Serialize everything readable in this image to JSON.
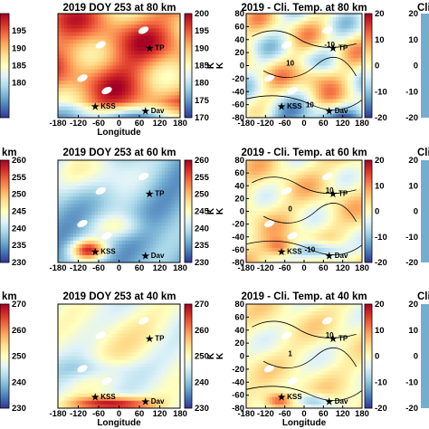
{
  "chart_data": [
    {
      "type": "heatmap",
      "title": "2019 DOY 253 at 80 km",
      "xlabel": "Longitude",
      "ylabel": "",
      "xlim": [
        -180,
        180
      ],
      "ylim": [
        -80,
        80
      ],
      "xticks": [
        "-180",
        "-120",
        "-60",
        "0",
        "60",
        "120",
        "180"
      ],
      "yticks": [],
      "colorbar": {
        "label": "K",
        "ticks": [
          "200",
          "195",
          "190",
          "185",
          "180",
          "175",
          "170"
        ],
        "range": [
          170,
          200
        ]
      },
      "left_colorbar_ticks": [
        "195",
        "190",
        "185",
        "180"
      ],
      "left_colorbar_label": "",
      "sites": [
        {
          "name": "TP",
          "lon": 90,
          "lat": 28
        },
        {
          "name": "KSS",
          "lon": -70,
          "lat": -62
        },
        {
          "name": "Dav",
          "lon": 78,
          "lat": -69
        }
      ]
    },
    {
      "type": "heatmap",
      "title": "2019 - Cli. Temp. at 80 km",
      "xlabel": "",
      "ylabel": "",
      "xlim": [
        -180,
        180
      ],
      "ylim": [
        -80,
        80
      ],
      "xticks": [
        "-180",
        "-120",
        "-60",
        "0",
        "60",
        "120",
        "180"
      ],
      "yticks": [
        "80",
        "60",
        "40",
        "20",
        "0",
        "-20",
        "-40",
        "-60",
        "-80"
      ],
      "ytick_axis_label": "K",
      "colorbar": {
        "label": "",
        "ticks": [
          "20",
          "10",
          "0",
          "-10",
          "-20"
        ],
        "range": [
          -20,
          20
        ]
      },
      "contour_labels": [
        "10",
        "-10",
        "10"
      ],
      "sites": [
        {
          "name": "TP",
          "lon": 90,
          "lat": 28
        },
        {
          "name": "KSS",
          "lon": -70,
          "lat": -62
        },
        {
          "name": "Dav",
          "lon": 78,
          "lat": -69
        }
      ]
    },
    {
      "type": "heatmap",
      "title": "2019 DOY 253 at 60 km",
      "xlabel": "",
      "ylabel": "",
      "xlim": [
        -180,
        180
      ],
      "ylim": [
        -80,
        80
      ],
      "xticks": [
        "-180",
        "-120",
        "-60",
        "0",
        "60",
        "120",
        "180"
      ],
      "yticks": [],
      "colorbar": {
        "label": "K",
        "ticks": [
          "260",
          "255",
          "250",
          "245",
          "240",
          "235",
          "230"
        ],
        "range": [
          230,
          260
        ]
      },
      "left_colorbar_ticks": [
        "260",
        "255",
        "250",
        "245",
        "240",
        "235",
        "230"
      ],
      "left_colorbar_label": "km",
      "sites": [
        {
          "name": "TP",
          "lon": 90,
          "lat": 28
        },
        {
          "name": "KSS",
          "lon": -70,
          "lat": -62
        },
        {
          "name": "Dav",
          "lon": 78,
          "lat": -69
        }
      ]
    },
    {
      "type": "heatmap",
      "title": "2019 - Cli. Temp. at 60 km",
      "xlabel": "",
      "ylabel": "",
      "xlim": [
        -180,
        180
      ],
      "ylim": [
        -80,
        80
      ],
      "xticks": [
        "-180",
        "-120",
        "-60",
        "0",
        "60",
        "120",
        "180"
      ],
      "yticks": [
        "80",
        "60",
        "40",
        "20",
        "0",
        "-20",
        "-40",
        "-60",
        "-80"
      ],
      "ytick_axis_label": "K",
      "colorbar": {
        "label": "",
        "ticks": [
          "20",
          "10",
          "0",
          "-10",
          "-20"
        ],
        "range": [
          -20,
          20
        ]
      },
      "contour_labels": [
        "0",
        "10",
        "-10"
      ],
      "sites": [
        {
          "name": "TP",
          "lon": 90,
          "lat": 28
        },
        {
          "name": "KSS",
          "lon": -70,
          "lat": -62
        },
        {
          "name": "Dav",
          "lon": 78,
          "lat": -69
        }
      ]
    },
    {
      "type": "heatmap",
      "title": "2019 DOY 253 at 40 km",
      "xlabel": "Longitude",
      "ylabel": "",
      "xlim": [
        -180,
        180
      ],
      "ylim": [
        -80,
        80
      ],
      "xticks": [
        "-180",
        "-120",
        "-60",
        "0",
        "60",
        "120",
        "180"
      ],
      "yticks": [],
      "colorbar": {
        "label": "K",
        "ticks": [
          "270",
          "260",
          "250",
          "240",
          "230"
        ],
        "range": [
          230,
          270
        ]
      },
      "left_colorbar_ticks": [
        "270",
        "260",
        "250",
        "240",
        "230"
      ],
      "left_colorbar_label": "km",
      "sites": [
        {
          "name": "TP",
          "lon": 90,
          "lat": 28
        },
        {
          "name": "KSS",
          "lon": -70,
          "lat": -62
        },
        {
          "name": "Dav",
          "lon": 78,
          "lat": -69
        }
      ]
    },
    {
      "type": "heatmap",
      "title": "2019 - Cli. Temp. at 40 km",
      "xlabel": "Longitude",
      "ylabel": "",
      "xlim": [
        -180,
        180
      ],
      "ylim": [
        -80,
        80
      ],
      "xticks": [
        "-180",
        "-120",
        "-60",
        "0",
        "60",
        "120",
        "180"
      ],
      "yticks": [
        "80",
        "60",
        "40",
        "20",
        "0",
        "-20",
        "-40",
        "-60",
        "-80"
      ],
      "ytick_axis_label": "K",
      "colorbar": {
        "label": "",
        "ticks": [
          "20",
          "10",
          "0",
          "-10",
          "-20"
        ],
        "range": [
          -20,
          20
        ]
      },
      "contour_labels": [
        "1",
        "10"
      ],
      "sites": [
        {
          "name": "TP",
          "lon": 90,
          "lat": 28
        },
        {
          "name": "KSS",
          "lon": -70,
          "lat": -62
        },
        {
          "name": "Dav",
          "lon": 78,
          "lat": -69
        }
      ]
    }
  ],
  "cropped_right_titles": [
    "Cli",
    "Cli",
    "Cli"
  ],
  "right_edge_ticks": [
    "20",
    "10",
    "0",
    "-10",
    "-20"
  ],
  "colors": {
    "colormap": [
      "#313695",
      "#4575b4",
      "#74add1",
      "#abd9e9",
      "#e0f3f8",
      "#ffffbf",
      "#fee090",
      "#fdae61",
      "#f46d43",
      "#d73027",
      "#a50026"
    ],
    "contour": "#000000",
    "no_data": "#ffffff"
  }
}
